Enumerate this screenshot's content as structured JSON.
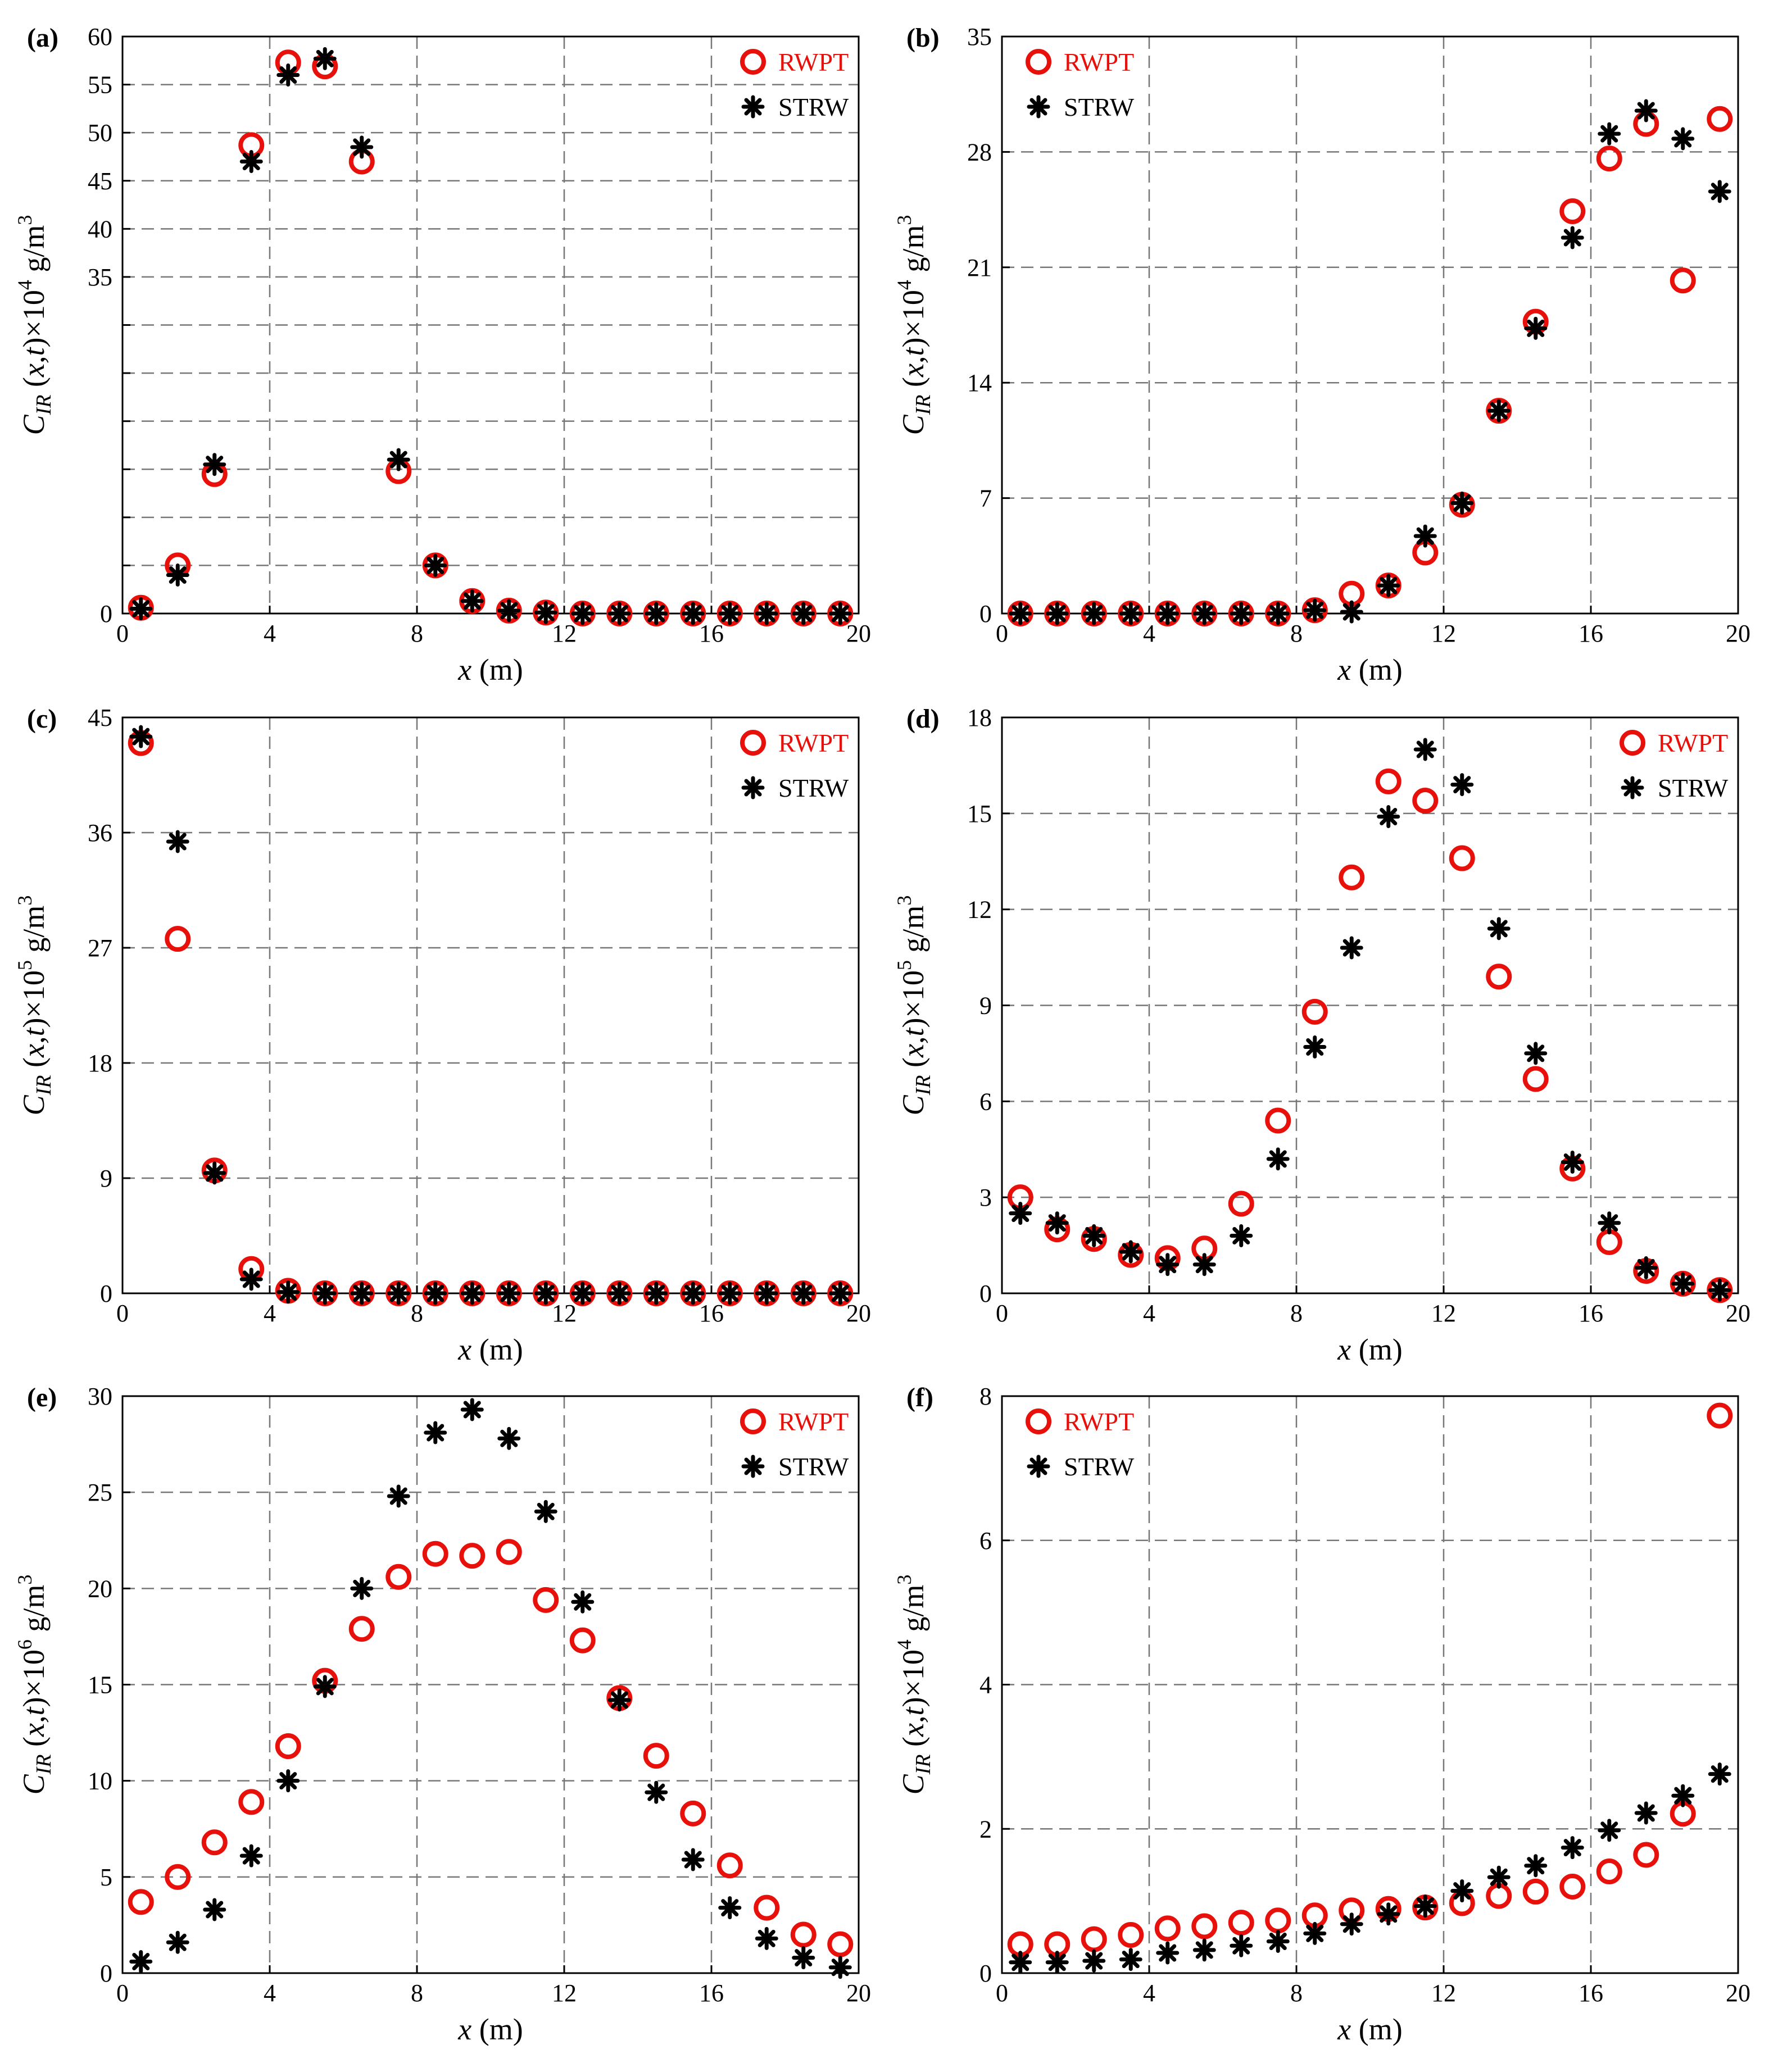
{
  "chart_data": [
    {
      "type": "scatter",
      "panel_label": "(a)",
      "xlabel": "x (m)",
      "ylabel": "C_IR (x,t)×10^4 g/m^3",
      "y_exponent": "4",
      "xlim": [
        0,
        20
      ],
      "ylim": [
        0,
        60
      ],
      "xticks": [
        0,
        4,
        8,
        12,
        16,
        20
      ],
      "yticks": [
        0,
        5,
        10,
        15,
        20,
        25,
        30,
        35,
        40,
        45,
        50,
        55,
        60
      ],
      "ytick_labels": [
        "0",
        "",
        "",
        "",
        "",
        "",
        "",
        "35",
        "40",
        "45",
        "50",
        "55",
        "60"
      ],
      "series": [
        {
          "name": "RWPT",
          "marker": "circle",
          "color": "#e8100a",
          "x": [
            0.5,
            1.5,
            2.5,
            3.5,
            4.5,
            5.5,
            6.5,
            7.5,
            8.5,
            9.5,
            10.5,
            11.5,
            12.5,
            13.5,
            14.5,
            15.5,
            16.5,
            17.5,
            18.5,
            19.5
          ],
          "y": [
            0.6,
            5.0,
            14.5,
            48.7,
            57.3,
            56.9,
            47.0,
            14.8,
            5.0,
            1.3,
            0.3,
            0.1,
            0.0,
            0.0,
            0.0,
            0.0,
            0.0,
            0.0,
            0.0,
            0.0
          ]
        },
        {
          "name": "STRW",
          "marker": "asterisk",
          "color": "#000000",
          "x": [
            0.5,
            1.5,
            2.5,
            3.5,
            4.5,
            5.5,
            6.5,
            7.5,
            8.5,
            9.5,
            10.5,
            11.5,
            12.5,
            13.5,
            14.5,
            15.5,
            16.5,
            17.5,
            18.5,
            19.5
          ],
          "y": [
            0.5,
            4.0,
            15.5,
            47.0,
            56.0,
            57.7,
            48.5,
            16.0,
            5.0,
            1.3,
            0.3,
            0.1,
            0.0,
            0.0,
            0.0,
            0.0,
            0.0,
            0.0,
            0.0,
            0.0
          ]
        }
      ]
    },
    {
      "type": "scatter",
      "panel_label": "(b)",
      "xlabel": "x (m)",
      "ylabel": "C_IR (x,t)×10^4 g/m^3",
      "y_exponent": "4",
      "xlim": [
        0,
        20
      ],
      "ylim": [
        0,
        35
      ],
      "xticks": [
        0,
        4,
        8,
        12,
        16,
        20
      ],
      "yticks": [
        0,
        7,
        14,
        21,
        28,
        35
      ],
      "ytick_labels": [
        "0",
        "7",
        "14",
        "21",
        "28",
        "35"
      ],
      "series": [
        {
          "name": "RWPT",
          "marker": "circle",
          "color": "#e8100a",
          "x": [
            0.5,
            1.5,
            2.5,
            3.5,
            4.5,
            5.5,
            6.5,
            7.5,
            8.5,
            9.5,
            10.5,
            11.5,
            12.5,
            13.5,
            14.5,
            15.5,
            16.5,
            17.5,
            18.5,
            19.5
          ],
          "y": [
            0.0,
            0.0,
            0.0,
            0.0,
            0.0,
            0.0,
            0.0,
            0.0,
            0.2,
            1.2,
            1.7,
            3.7,
            6.6,
            12.3,
            17.7,
            24.4,
            27.6,
            29.7,
            20.2,
            30.0
          ]
        },
        {
          "name": "STRW",
          "marker": "asterisk",
          "color": "#000000",
          "x": [
            0.5,
            1.5,
            2.5,
            3.5,
            4.5,
            5.5,
            6.5,
            7.5,
            8.5,
            9.5,
            10.5,
            11.5,
            12.5,
            13.5,
            14.5,
            15.5,
            16.5,
            17.5,
            18.5,
            19.5
          ],
          "y": [
            0.0,
            0.0,
            0.0,
            0.0,
            0.0,
            0.0,
            0.0,
            0.0,
            0.2,
            0.1,
            1.7,
            4.7,
            6.7,
            12.3,
            17.3,
            22.8,
            29.1,
            30.5,
            28.8,
            25.6
          ]
        }
      ]
    },
    {
      "type": "scatter",
      "panel_label": "(c)",
      "xlabel": "x (m)",
      "ylabel": "C_IR (x,t)×10^5 g/m^3",
      "y_exponent": "5",
      "xlim": [
        0,
        20
      ],
      "ylim": [
        0,
        45
      ],
      "xticks": [
        0,
        4,
        8,
        12,
        16,
        20
      ],
      "yticks": [
        0,
        9,
        18,
        27,
        36,
        45
      ],
      "ytick_labels": [
        "0",
        "9",
        "18",
        "27",
        "36",
        "45"
      ],
      "series": [
        {
          "name": "RWPT",
          "marker": "circle",
          "color": "#e8100a",
          "x": [
            0.5,
            1.5,
            2.5,
            3.5,
            4.5,
            5.5,
            6.5,
            7.5,
            8.5,
            9.5,
            10.5,
            11.5,
            12.5,
            13.5,
            14.5,
            15.5,
            16.5,
            17.5,
            18.5,
            19.5
          ],
          "y": [
            43.0,
            27.7,
            9.6,
            1.9,
            0.2,
            0.0,
            0.0,
            0.0,
            0.0,
            0.0,
            0.0,
            0.0,
            0.0,
            0.0,
            0.0,
            0.0,
            0.0,
            0.0,
            0.0,
            0.0
          ]
        },
        {
          "name": "STRW",
          "marker": "asterisk",
          "color": "#000000",
          "x": [
            0.5,
            1.5,
            2.5,
            3.5,
            4.5,
            5.5,
            6.5,
            7.5,
            8.5,
            9.5,
            10.5,
            11.5,
            12.5,
            13.5,
            14.5,
            15.5,
            16.5,
            17.5,
            18.5,
            19.5
          ],
          "y": [
            43.5,
            35.3,
            9.4,
            1.1,
            0.1,
            0.0,
            0.0,
            0.0,
            0.0,
            0.0,
            0.0,
            0.0,
            0.0,
            0.0,
            0.0,
            0.0,
            0.0,
            0.0,
            0.0,
            0.0
          ]
        }
      ]
    },
    {
      "type": "scatter",
      "panel_label": "(d)",
      "xlabel": "x (m)",
      "ylabel": "C_IR (x,t)×10^5 g/m^3",
      "y_exponent": "5",
      "xlim": [
        0,
        20
      ],
      "ylim": [
        0,
        18
      ],
      "xticks": [
        0,
        4,
        8,
        12,
        16,
        20
      ],
      "yticks": [
        0,
        3,
        6,
        9,
        12,
        15,
        18
      ],
      "ytick_labels": [
        "0",
        "3",
        "6",
        "9",
        "12",
        "15",
        "18"
      ],
      "series": [
        {
          "name": "RWPT",
          "marker": "circle",
          "color": "#e8100a",
          "x": [
            0.5,
            1.5,
            2.5,
            3.5,
            4.5,
            5.5,
            6.5,
            7.5,
            8.5,
            9.5,
            10.5,
            11.5,
            12.5,
            13.5,
            14.5,
            15.5,
            16.5,
            17.5,
            18.5,
            19.5
          ],
          "y": [
            3.0,
            2.0,
            1.7,
            1.2,
            1.1,
            1.4,
            2.8,
            5.4,
            8.8,
            13.0,
            16.0,
            15.4,
            13.6,
            9.9,
            6.7,
            3.9,
            1.6,
            0.7,
            0.3,
            0.1
          ]
        },
        {
          "name": "STRW",
          "marker": "asterisk",
          "color": "#000000",
          "x": [
            0.5,
            1.5,
            2.5,
            3.5,
            4.5,
            5.5,
            6.5,
            7.5,
            8.5,
            9.5,
            10.5,
            11.5,
            12.5,
            13.5,
            14.5,
            15.5,
            16.5,
            17.5,
            18.5,
            19.5
          ],
          "y": [
            2.5,
            2.2,
            1.8,
            1.3,
            0.9,
            0.9,
            1.8,
            4.2,
            7.7,
            10.8,
            14.9,
            17.0,
            15.9,
            11.4,
            7.5,
            4.1,
            2.2,
            0.8,
            0.3,
            0.1
          ]
        }
      ]
    },
    {
      "type": "scatter",
      "panel_label": "(e)",
      "xlabel": "x (m)",
      "ylabel": "C_IR (x,t)×10^6 g/m^3",
      "y_exponent": "6",
      "xlim": [
        0,
        20
      ],
      "ylim": [
        0,
        30
      ],
      "xticks": [
        0,
        4,
        8,
        12,
        16,
        20
      ],
      "yticks": [
        0,
        5,
        10,
        15,
        20,
        25,
        30
      ],
      "ytick_labels": [
        "0",
        "5",
        "10",
        "15",
        "20",
        "25",
        "30"
      ],
      "series": [
        {
          "name": "RWPT",
          "marker": "circle",
          "color": "#e8100a",
          "x": [
            0.5,
            1.5,
            2.5,
            3.5,
            4.5,
            5.5,
            6.5,
            7.5,
            8.5,
            9.5,
            10.5,
            11.5,
            12.5,
            13.5,
            14.5,
            15.5,
            16.5,
            17.5,
            18.5,
            19.5
          ],
          "y": [
            3.7,
            5.0,
            6.8,
            8.9,
            11.8,
            15.2,
            17.9,
            20.6,
            21.8,
            21.7,
            21.9,
            19.4,
            17.3,
            14.3,
            11.3,
            8.3,
            5.6,
            3.4,
            2.0,
            1.5
          ]
        },
        {
          "name": "STRW",
          "marker": "asterisk",
          "color": "#000000",
          "x": [
            0.5,
            1.5,
            2.5,
            3.5,
            4.5,
            5.5,
            6.5,
            7.5,
            8.5,
            9.5,
            10.5,
            11.5,
            12.5,
            13.5,
            14.5,
            15.5,
            16.5,
            17.5,
            18.5,
            19.5
          ],
          "y": [
            0.6,
            1.6,
            3.3,
            6.1,
            10.0,
            14.9,
            20.0,
            24.8,
            28.1,
            29.3,
            27.8,
            24.0,
            19.3,
            14.2,
            9.4,
            5.9,
            3.4,
            1.8,
            0.8,
            0.3
          ]
        }
      ]
    },
    {
      "type": "scatter",
      "panel_label": "(f)",
      "xlabel": "x (m)",
      "ylabel": "C_IR (x,t)×10^4 g/m^3",
      "y_exponent": "4",
      "xlim": [
        0,
        20
      ],
      "ylim": [
        0,
        8
      ],
      "xticks": [
        0,
        4,
        8,
        12,
        16,
        20
      ],
      "yticks": [
        0,
        2,
        4,
        6,
        8
      ],
      "ytick_labels": [
        "0",
        "2",
        "4",
        "6",
        "8"
      ],
      "series": [
        {
          "name": "RWPT",
          "marker": "circle",
          "color": "#e8100a",
          "x": [
            0.5,
            1.5,
            2.5,
            3.5,
            4.5,
            5.5,
            6.5,
            7.5,
            8.5,
            9.5,
            10.5,
            11.5,
            12.5,
            13.5,
            14.5,
            15.5,
            16.5,
            17.5,
            18.5,
            19.5
          ],
          "y": [
            0.4,
            0.4,
            0.47,
            0.53,
            0.62,
            0.65,
            0.7,
            0.73,
            0.8,
            0.87,
            0.89,
            0.91,
            0.97,
            1.07,
            1.13,
            1.2,
            1.41,
            1.64,
            2.21,
            7.73
          ]
        },
        {
          "name": "STRW",
          "marker": "asterisk",
          "color": "#000000",
          "x": [
            0.5,
            1.5,
            2.5,
            3.5,
            4.5,
            5.5,
            6.5,
            7.5,
            8.5,
            9.5,
            10.5,
            11.5,
            12.5,
            13.5,
            14.5,
            15.5,
            16.5,
            17.5,
            18.5,
            19.5
          ],
          "y": [
            0.15,
            0.15,
            0.17,
            0.19,
            0.28,
            0.32,
            0.38,
            0.44,
            0.55,
            0.68,
            0.82,
            0.93,
            1.14,
            1.33,
            1.49,
            1.74,
            1.98,
            2.22,
            2.46,
            2.76
          ]
        }
      ]
    }
  ]
}
